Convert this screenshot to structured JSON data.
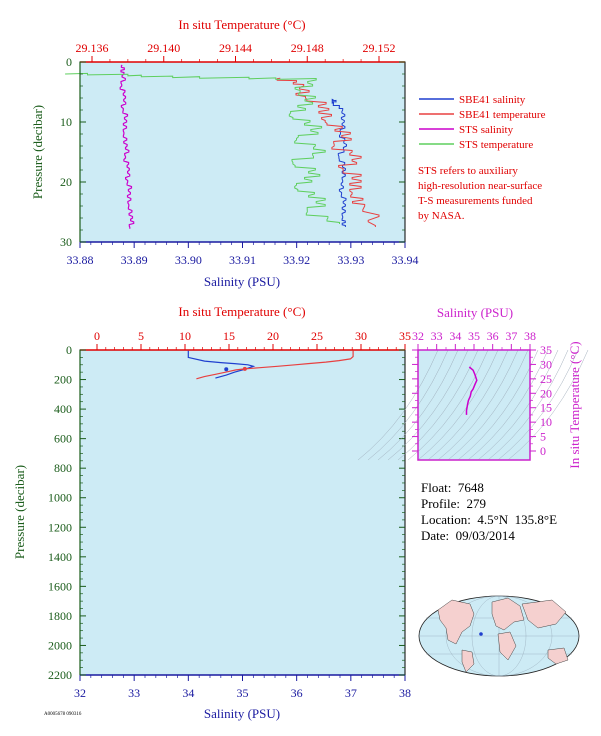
{
  "colors": {
    "plot_bg": "#cdebf5",
    "salinity_axis": "#1a1aa0",
    "temperature_axis": "#e00000",
    "pressure_axis": "#1a5c1a",
    "sbe41_salinity": "#1f3fcf",
    "sbe41_temperature": "#e84040",
    "sts_salinity": "#cc00cc",
    "sts_temperature": "#5fcf5f",
    "ts_axis": "#cc22cc",
    "annotation": "#e00000"
  },
  "top_chart": {
    "top_axis_label": "In situ Temperature (°C)",
    "left_axis_label": "Pressure (decibar)",
    "bottom_axis_label": "Salinity (PSU)",
    "temp_ticks": [
      "29.136",
      "29.140",
      "29.144",
      "29.148",
      "29.152"
    ],
    "sal_ticks": [
      "33.88",
      "33.89",
      "33.90",
      "33.91",
      "33.92",
      "33.93",
      "33.94"
    ],
    "pres_ticks": [
      "0",
      "10",
      "20",
      "30"
    ],
    "legend": [
      {
        "label": "SBE41 salinity",
        "color": "#1f3fcf"
      },
      {
        "label": "SBE41 temperature",
        "color": "#e84040"
      },
      {
        "label": "STS salinity",
        "color": "#cc00cc"
      },
      {
        "label": "STS temperature",
        "color": "#5fcf5f"
      }
    ],
    "note": [
      "STS refers to auxiliary",
      "high-resolution near-surface",
      "T-S measurements funded",
      "by NASA."
    ]
  },
  "bottom_chart": {
    "top_axis_label": "In situ Temperature (°C)",
    "left_axis_label": "Pressure (decibar)",
    "bottom_axis_label": "Salinity (PSU)",
    "temp_ticks": [
      "0",
      "5",
      "10",
      "15",
      "20",
      "25",
      "30",
      "35"
    ],
    "sal_ticks": [
      "32",
      "33",
      "34",
      "35",
      "36",
      "37",
      "38"
    ],
    "pres_ticks": [
      "0",
      "200",
      "400",
      "600",
      "800",
      "1000",
      "1200",
      "1400",
      "1600",
      "1800",
      "2000",
      "2200"
    ]
  },
  "ts_chart": {
    "top_axis_label": "Salinity (PSU)",
    "right_axis_label": "In situ Temperature (°C)",
    "sal_ticks": [
      "32",
      "33",
      "34",
      "35",
      "36",
      "37",
      "38"
    ],
    "temp_ticks": [
      "0",
      "5",
      "10",
      "15",
      "20",
      "25",
      "30",
      "35"
    ]
  },
  "info": {
    "float": "Float:  7648",
    "profile": "Profile:  279",
    "location": "Location:  4.5°N  135.8°E",
    "date": "Date:  09/03/2014"
  },
  "footer_code": "A0005678 090316",
  "chart_data": [
    {
      "type": "line",
      "title": "",
      "x_axis_bottom": {
        "label": "Salinity (PSU)",
        "lim": [
          33.88,
          33.94
        ]
      },
      "x_axis_top": {
        "label": "In situ Temperature (°C)",
        "lim": [
          29.134,
          29.153
        ]
      },
      "y_axis": {
        "label": "Pressure (decibar)",
        "lim": [
          0,
          30
        ],
        "inverted": true
      },
      "series": [
        {
          "name": "SBE41 salinity",
          "axis": "salinity",
          "x": [
            33.9268,
            33.9268,
            33.9285,
            33.9288,
            33.9281,
            33.9292,
            33.9278,
            33.929,
            33.9285,
            33.9283,
            33.929,
            33.9285,
            33.929
          ],
          "y": [
            6.3,
            7,
            8,
            10,
            12,
            14,
            16,
            18,
            20,
            22,
            24,
            26,
            27.5
          ]
        },
        {
          "name": "SBE41 temperature",
          "axis": "temperature",
          "x": [
            29.1465,
            29.1478,
            29.1479,
            29.1492,
            29.149,
            29.1504,
            29.1495,
            29.151,
            29.15,
            29.151,
            29.1505,
            29.1512,
            29.1518
          ],
          "y": [
            2.7,
            4,
            6,
            8,
            10,
            12,
            14,
            16,
            18,
            20,
            22,
            24,
            27.5
          ]
        },
        {
          "name": "STS salinity",
          "axis": "salinity",
          "x": [
            33.8878,
            33.8881,
            33.8877,
            33.8884,
            33.888,
            33.8886,
            33.8881,
            33.8887,
            33.8884,
            33.8891,
            33.8888,
            33.8893,
            33.889,
            33.8897,
            33.8892
          ],
          "y": [
            0.5,
            2,
            4,
            6,
            8,
            10,
            12,
            14,
            16,
            18,
            20,
            22,
            24,
            26,
            27.8
          ]
        },
        {
          "name": "STS temperature",
          "axis": "temperature",
          "x": [
            29.1345,
            29.1405,
            29.1485,
            29.1476,
            29.1483,
            29.147,
            29.1488,
            29.1474,
            29.149,
            29.1472,
            29.1487,
            29.1473,
            29.149,
            29.148,
            29.1498
          ],
          "y": [
            2,
            2.6,
            3.0,
            5,
            7,
            9,
            11,
            13,
            15,
            17,
            19,
            21,
            23,
            25,
            27
          ]
        }
      ]
    },
    {
      "type": "line",
      "title": "",
      "x_axis_bottom": {
        "label": "Salinity (PSU)",
        "lim": [
          32,
          38
        ]
      },
      "x_axis_top": {
        "label": "In situ Temperature (°C)",
        "lim": [
          -2,
          35
        ]
      },
      "y_axis": {
        "label": "Pressure (decibar)",
        "lim": [
          0,
          2200
        ],
        "inverted": true
      },
      "series": [
        {
          "axis": "salinity",
          "x": [
            34.0,
            34.0,
            34.3,
            34.6,
            34.85,
            35.1,
            35.2,
            35.05,
            34.85,
            34.7,
            34.5
          ],
          "y": [
            5,
            50,
            75,
            85,
            92,
            100,
            110,
            130,
            150,
            170,
            190
          ]
        },
        {
          "axis": "temperature",
          "x": [
            29.1,
            29.1,
            28.8,
            27.5,
            26.0,
            24.0,
            22.5,
            20.5,
            18.5,
            16.8,
            15.8,
            14.6,
            13.4,
            12.2,
            11.3
          ],
          "y": [
            5,
            45,
            60,
            72,
            82,
            92,
            100,
            110,
            120,
            128,
            135,
            150,
            165,
            180,
            195
          ]
        }
      ]
    },
    {
      "type": "line",
      "title": "",
      "x_axis": {
        "label": "Salinity (PSU)",
        "lim": [
          32,
          38
        ]
      },
      "y_axis": {
        "label": "In situ Temperature (°C)",
        "lim": [
          -2,
          35
        ]
      },
      "series": [
        {
          "x": [
            34.6,
            34.6,
            34.65,
            34.7,
            34.8,
            34.85,
            34.95,
            35.05,
            35.15,
            35.05,
            34.95,
            34.75
          ],
          "y": [
            12.5,
            14,
            16,
            17.5,
            19,
            20.5,
            21.5,
            23,
            24.5,
            26.5,
            28,
            29.1
          ]
        }
      ]
    }
  ]
}
